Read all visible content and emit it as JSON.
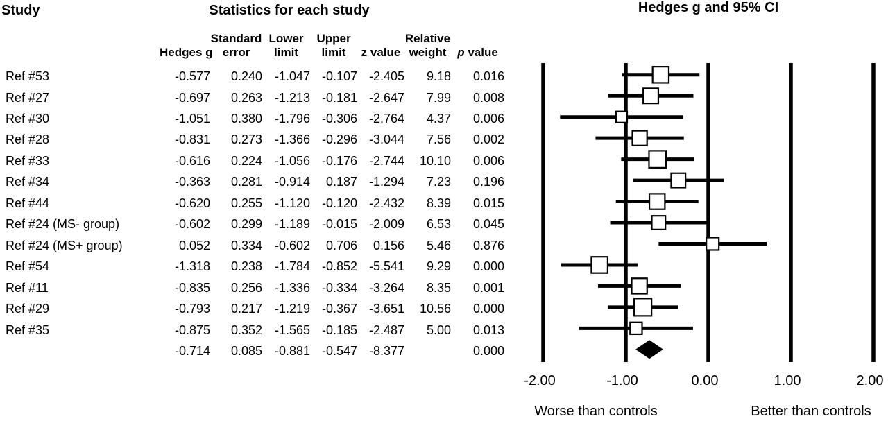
{
  "colors": {
    "foreground": "#000000",
    "background": "#ffffff",
    "marker_fill": "#ffffff"
  },
  "chart_data": {
    "type": "forest",
    "study_col_title": "Study",
    "table_title": "Statistics for each study",
    "title": "Hedges g and 95% CI",
    "columns": [
      {
        "id": "hedges_g",
        "line1": "",
        "line2": "Hedges g"
      },
      {
        "id": "standard_error",
        "line1": "Standard",
        "line2": "error"
      },
      {
        "id": "lower_limit",
        "line1": "Lower",
        "line2": "limit"
      },
      {
        "id": "upper_limit",
        "line1": "Upper",
        "line2": "limit"
      },
      {
        "id": "z_value",
        "line1": "",
        "line2": "z value"
      },
      {
        "id": "relative_weight",
        "line1": "Relative",
        "line2": "weight"
      },
      {
        "id": "p_value",
        "line1": "",
        "line2": "p value",
        "italic_first": true
      }
    ],
    "studies": [
      {
        "label": "Ref #53",
        "hedges_g": "-0.577",
        "standard_error": "0.240",
        "lower_limit": "-1.047",
        "upper_limit": "-0.107",
        "z_value": "-2.405",
        "relative_weight": "9.18",
        "p_value": "0.016"
      },
      {
        "label": "Ref #27",
        "hedges_g": "-0.697",
        "standard_error": "0.263",
        "lower_limit": "-1.213",
        "upper_limit": "-0.181",
        "z_value": "-2.647",
        "relative_weight": "7.99",
        "p_value": "0.008"
      },
      {
        "label": "Ref #30",
        "hedges_g": "-1.051",
        "standard_error": "0.380",
        "lower_limit": "-1.796",
        "upper_limit": "-0.306",
        "z_value": "-2.764",
        "relative_weight": "4.37",
        "p_value": "0.006"
      },
      {
        "label": "Ref #28",
        "hedges_g": "-0.831",
        "standard_error": "0.273",
        "lower_limit": "-1.366",
        "upper_limit": "-0.296",
        "z_value": "-3.044",
        "relative_weight": "7.56",
        "p_value": "0.002"
      },
      {
        "label": "Ref #33",
        "hedges_g": "-0.616",
        "standard_error": "0.224",
        "lower_limit": "-1.056",
        "upper_limit": "-0.176",
        "z_value": "-2.744",
        "relative_weight": "10.10",
        "p_value": "0.006"
      },
      {
        "label": "Ref #34",
        "hedges_g": "-0.363",
        "standard_error": "0.281",
        "lower_limit": "-0.914",
        "upper_limit": "0.187",
        "z_value": "-1.294",
        "relative_weight": "7.23",
        "p_value": "0.196"
      },
      {
        "label": "Ref #44",
        "hedges_g": "-0.620",
        "standard_error": "0.255",
        "lower_limit": "-1.120",
        "upper_limit": "-0.120",
        "z_value": "-2.432",
        "relative_weight": "8.39",
        "p_value": "0.015"
      },
      {
        "label": "Ref #24 (MS- group)",
        "hedges_g": "-0.602",
        "standard_error": "0.299",
        "lower_limit": "-1.189",
        "upper_limit": "-0.015",
        "z_value": "-2.009",
        "relative_weight": "6.53",
        "p_value": "0.045"
      },
      {
        "label": "Ref #24 (MS+ group)",
        "hedges_g": "0.052",
        "standard_error": "0.334",
        "lower_limit": "-0.602",
        "upper_limit": "0.706",
        "z_value": "0.156",
        "relative_weight": "5.46",
        "p_value": "0.876"
      },
      {
        "label": "Ref #54",
        "hedges_g": "-1.318",
        "standard_error": "0.238",
        "lower_limit": "-1.784",
        "upper_limit": "-0.852",
        "z_value": "-5.541",
        "relative_weight": "9.29",
        "p_value": "0.000"
      },
      {
        "label": "Ref #11",
        "hedges_g": "-0.835",
        "standard_error": "0.256",
        "lower_limit": "-1.336",
        "upper_limit": "-0.334",
        "z_value": "-3.264",
        "relative_weight": "8.35",
        "p_value": "0.001"
      },
      {
        "label": "Ref #29",
        "hedges_g": "-0.793",
        "standard_error": "0.217",
        "lower_limit": "-1.219",
        "upper_limit": "-0.367",
        "z_value": "-3.651",
        "relative_weight": "10.56",
        "p_value": "0.000"
      },
      {
        "label": "Ref #35",
        "hedges_g": "-0.875",
        "standard_error": "0.352",
        "lower_limit": "-1.565",
        "upper_limit": "-0.185",
        "z_value": "-2.487",
        "relative_weight": "5.00",
        "p_value": "0.013"
      }
    ],
    "summary": {
      "label": "",
      "hedges_g": "-0.714",
      "standard_error": "0.085",
      "lower_limit": "-0.881",
      "upper_limit": "-0.547",
      "z_value": "-8.377",
      "relative_weight": "",
      "p_value": "0.000"
    },
    "x_axis": {
      "ticks": [
        "-2.00",
        "-1.00",
        "0.00",
        "1.00",
        "2.00"
      ],
      "min": -2,
      "max": 2,
      "grid": true
    },
    "annotations": {
      "left": "Worse than controls",
      "right": "Better than controls"
    }
  }
}
